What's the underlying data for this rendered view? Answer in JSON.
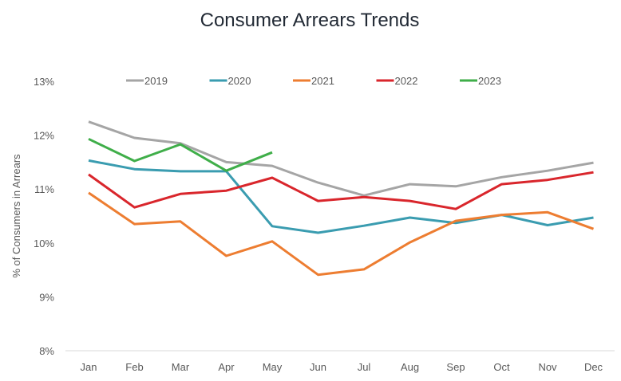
{
  "chart_data": {
    "type": "line",
    "title": "Consumer Arrears Trends",
    "xlabel": "",
    "ylabel": "% of Consumers in Arrears",
    "categories": [
      "Jan",
      "Feb",
      "Mar",
      "Apr",
      "May",
      "Jun",
      "Jul",
      "Aug",
      "Sep",
      "Oct",
      "Nov",
      "Dec"
    ],
    "ylim": [
      8,
      13
    ],
    "yticks": [
      8,
      9,
      10,
      11,
      12,
      13
    ],
    "ytick_labels": [
      "8%",
      "9%",
      "10%",
      "11%",
      "12%",
      "13%"
    ],
    "grid": false,
    "legend_position": "top",
    "series": [
      {
        "name": "2019",
        "color": "#a5a5a5",
        "values": [
          12.25,
          11.95,
          11.85,
          11.5,
          11.43,
          11.12,
          10.88,
          11.09,
          11.05,
          11.22,
          11.34,
          11.49
        ]
      },
      {
        "name": "2020",
        "color": "#3a9cb0",
        "values": [
          11.53,
          11.37,
          11.33,
          11.33,
          10.31,
          10.19,
          10.32,
          10.47,
          10.37,
          10.52,
          10.33,
          10.47
        ]
      },
      {
        "name": "2021",
        "color": "#ed7d31",
        "values": [
          10.93,
          10.35,
          10.4,
          9.76,
          10.03,
          9.41,
          9.51,
          10.01,
          10.41,
          10.52,
          10.57,
          10.26
        ]
      },
      {
        "name": "2022",
        "color": "#d9262c",
        "values": [
          11.27,
          10.66,
          10.91,
          10.97,
          11.21,
          10.78,
          10.85,
          10.78,
          10.63,
          11.09,
          11.17,
          11.31
        ]
      },
      {
        "name": "2023",
        "color": "#3fae49",
        "values": [
          11.93,
          11.52,
          11.83,
          11.34,
          11.68
        ]
      }
    ]
  }
}
